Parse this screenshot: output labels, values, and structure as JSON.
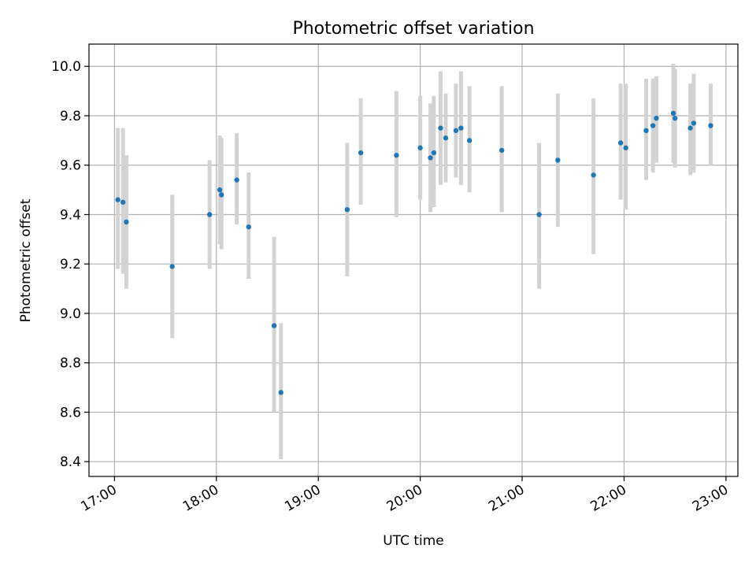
{
  "chart_data": {
    "type": "scatter",
    "title": "Photometric offset variation",
    "xlabel": "UTC time",
    "ylabel": "Photometric offset",
    "x_unit": "UTC time (HH:MM)",
    "xlim": [
      "16:45",
      "23:07"
    ],
    "ylim": [
      8.34,
      10.09
    ],
    "x_ticks": [
      "17:00",
      "18:00",
      "19:00",
      "20:00",
      "21:00",
      "22:00",
      "23:00"
    ],
    "y_ticks": [
      "8.4",
      "8.6",
      "8.8",
      "9.0",
      "9.2",
      "9.4",
      "9.6",
      "9.8",
      "10.0"
    ],
    "grid": true,
    "point_color": "#1f77b4",
    "errorbar_color": "#d3d3d3",
    "points": [
      {
        "x": "17:02",
        "y": 9.46,
        "ylo": 9.18,
        "yhi": 9.75
      },
      {
        "x": "17:05",
        "y": 9.45,
        "ylo": 9.16,
        "yhi": 9.75
      },
      {
        "x": "17:07",
        "y": 9.37,
        "ylo": 9.1,
        "yhi": 9.64
      },
      {
        "x": "17:34",
        "y": 9.19,
        "ylo": 8.9,
        "yhi": 9.48
      },
      {
        "x": "17:56",
        "y": 9.4,
        "ylo": 9.18,
        "yhi": 9.62
      },
      {
        "x": "18:02",
        "y": 9.5,
        "ylo": 9.28,
        "yhi": 9.72
      },
      {
        "x": "18:03",
        "y": 9.48,
        "ylo": 9.26,
        "yhi": 9.71
      },
      {
        "x": "18:12",
        "y": 9.54,
        "ylo": 9.36,
        "yhi": 9.73
      },
      {
        "x": "18:19",
        "y": 9.35,
        "ylo": 9.14,
        "yhi": 9.57
      },
      {
        "x": "18:34",
        "y": 8.95,
        "ylo": 8.6,
        "yhi": 9.31
      },
      {
        "x": "18:38",
        "y": 8.68,
        "ylo": 8.41,
        "yhi": 8.96
      },
      {
        "x": "19:17",
        "y": 9.42,
        "ylo": 9.15,
        "yhi": 9.69
      },
      {
        "x": "19:25",
        "y": 9.65,
        "ylo": 9.44,
        "yhi": 9.87
      },
      {
        "x": "19:46",
        "y": 9.64,
        "ylo": 9.39,
        "yhi": 9.9
      },
      {
        "x": "20:00",
        "y": 9.67,
        "ylo": 9.46,
        "yhi": 9.88
      },
      {
        "x": "20:06",
        "y": 9.63,
        "ylo": 9.41,
        "yhi": 9.85
      },
      {
        "x": "20:08",
        "y": 9.65,
        "ylo": 9.43,
        "yhi": 9.88
      },
      {
        "x": "20:12",
        "y": 9.75,
        "ylo": 9.52,
        "yhi": 9.98
      },
      {
        "x": "20:15",
        "y": 9.71,
        "ylo": 9.53,
        "yhi": 9.89
      },
      {
        "x": "20:21",
        "y": 9.74,
        "ylo": 9.55,
        "yhi": 9.93
      },
      {
        "x": "20:24",
        "y": 9.75,
        "ylo": 9.52,
        "yhi": 9.98
      },
      {
        "x": "20:29",
        "y": 9.7,
        "ylo": 9.49,
        "yhi": 9.92
      },
      {
        "x": "20:48",
        "y": 9.66,
        "ylo": 9.41,
        "yhi": 9.92
      },
      {
        "x": "21:10",
        "y": 9.4,
        "ylo": 9.1,
        "yhi": 9.69
      },
      {
        "x": "21:21",
        "y": 9.62,
        "ylo": 9.35,
        "yhi": 9.89
      },
      {
        "x": "21:42",
        "y": 9.56,
        "ylo": 9.24,
        "yhi": 9.87
      },
      {
        "x": "21:58",
        "y": 9.69,
        "ylo": 9.46,
        "yhi": 9.93
      },
      {
        "x": "22:01",
        "y": 9.67,
        "ylo": 9.42,
        "yhi": 9.93
      },
      {
        "x": "22:13",
        "y": 9.74,
        "ylo": 9.54,
        "yhi": 9.95
      },
      {
        "x": "22:17",
        "y": 9.76,
        "ylo": 9.57,
        "yhi": 9.95
      },
      {
        "x": "22:19",
        "y": 9.79,
        "ylo": 9.61,
        "yhi": 9.96
      },
      {
        "x": "22:29",
        "y": 9.81,
        "ylo": 9.61,
        "yhi": 10.01
      },
      {
        "x": "22:30",
        "y": 9.79,
        "ylo": 9.59,
        "yhi": 9.99
      },
      {
        "x": "22:39",
        "y": 9.75,
        "ylo": 9.56,
        "yhi": 9.93
      },
      {
        "x": "22:41",
        "y": 9.77,
        "ylo": 9.57,
        "yhi": 9.97
      },
      {
        "x": "22:51",
        "y": 9.76,
        "ylo": 9.6,
        "yhi": 9.93
      }
    ]
  }
}
